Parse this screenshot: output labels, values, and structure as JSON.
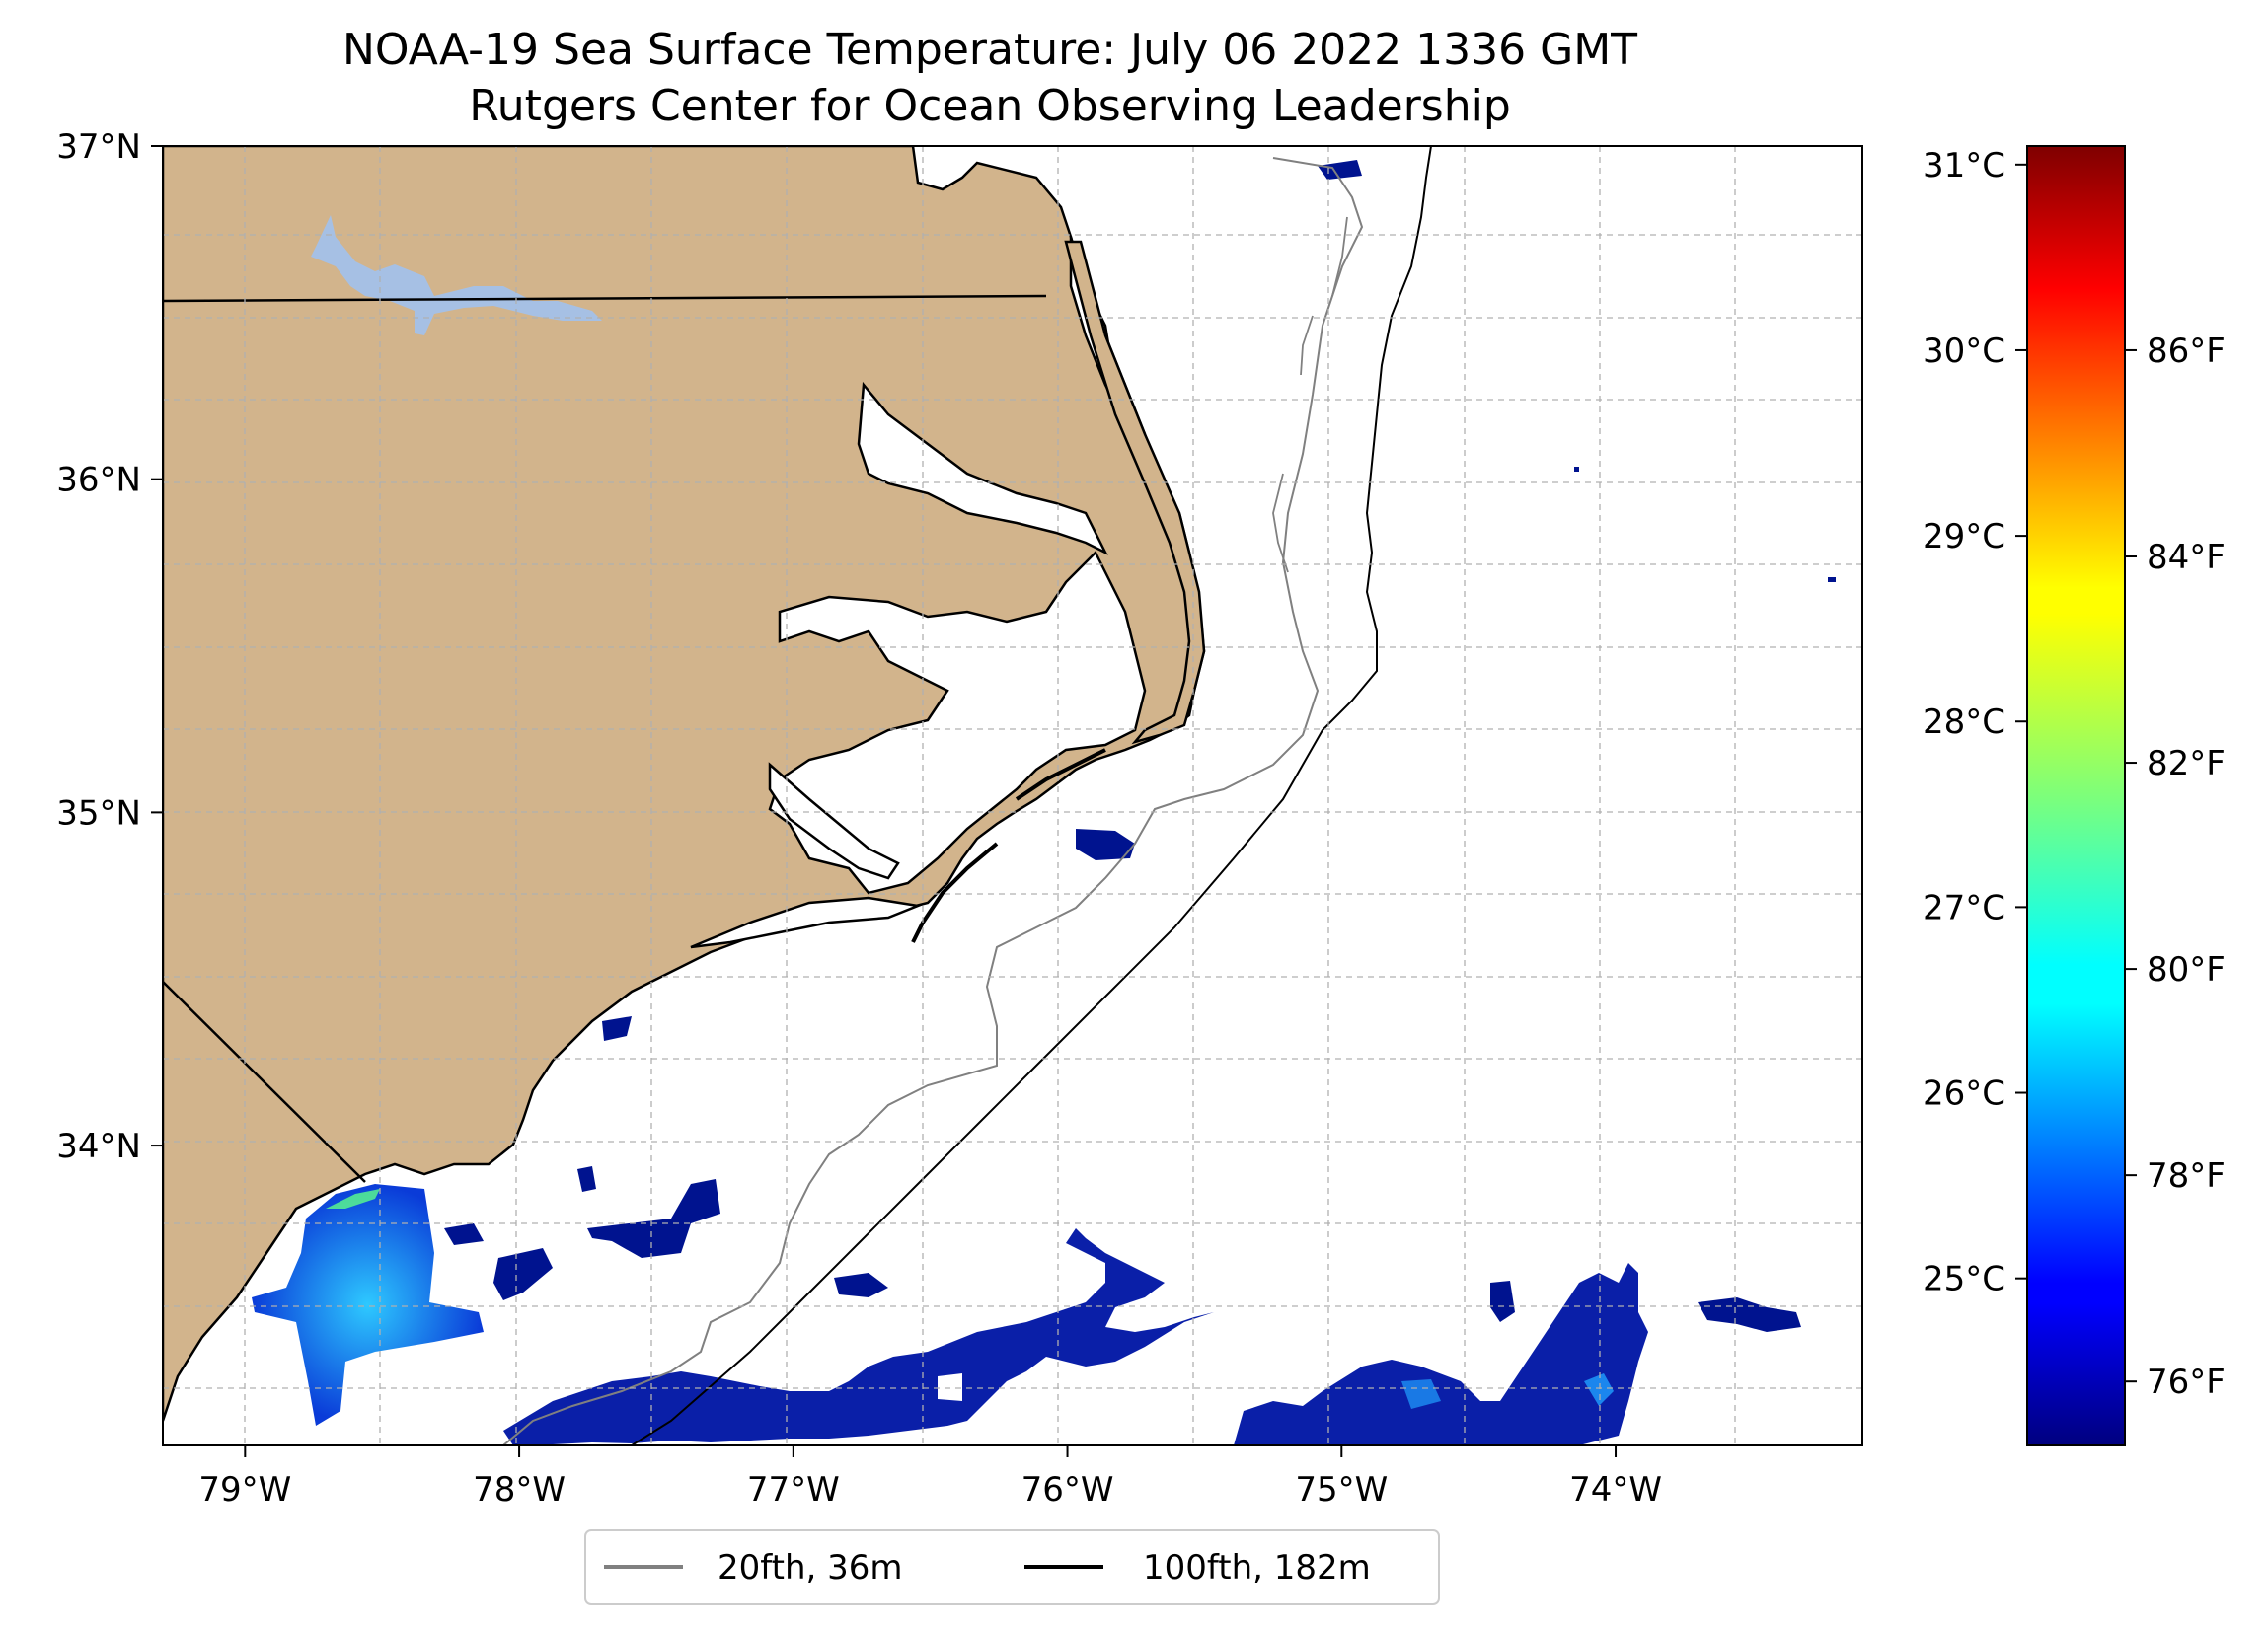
{
  "title": {
    "line1": "NOAA-19 Sea Surface Temperature: July 06 2022 1336 GMT",
    "line2": "Rutgers Center for Ocean Observing Leadership"
  },
  "map": {
    "lon_range": [
      -79.3,
      -73.1
    ],
    "lat_range": [
      33.1,
      37.0
    ],
    "lon_ticks": [
      {
        "value": -79,
        "label": "79°W"
      },
      {
        "value": -78,
        "label": "78°W"
      },
      {
        "value": -77,
        "label": "77°W"
      },
      {
        "value": -76,
        "label": "76°W"
      },
      {
        "value": -75,
        "label": "75°W"
      },
      {
        "value": -74,
        "label": "74°W"
      }
    ],
    "lat_ticks": [
      {
        "value": 34,
        "label": "34°N"
      },
      {
        "value": 35,
        "label": "35°N"
      },
      {
        "value": 36,
        "label": "36°N"
      },
      {
        "value": 37,
        "label": "37°N"
      }
    ],
    "grid": true,
    "colors": {
      "land": "#d2b48c",
      "lake": "#a6c0e4",
      "coastline": "#000000",
      "isobath_20": "#808080",
      "isobath_100": "#000000"
    }
  },
  "legend": {
    "placement": "bottom-center",
    "items": [
      {
        "label": "20fth, 36m",
        "color": "#808080"
      },
      {
        "label": "100fth, 182m",
        "color": "#000000"
      }
    ]
  },
  "colorbar": {
    "colormap": "jet",
    "range_c": [
      24.1,
      31.1
    ],
    "celsius_ticks": [
      {
        "value": 25,
        "label": "25°C"
      },
      {
        "value": 26,
        "label": "26°C"
      },
      {
        "value": 27,
        "label": "27°C"
      },
      {
        "value": 28,
        "label": "28°C"
      },
      {
        "value": 29,
        "label": "29°C"
      },
      {
        "value": 30,
        "label": "30°C"
      },
      {
        "value": 31,
        "label": "31°C"
      }
    ],
    "fahrenheit_ticks": [
      {
        "value": 76,
        "label": "76°F"
      },
      {
        "value": 78,
        "label": "78°F"
      },
      {
        "value": 80,
        "label": "80°F"
      },
      {
        "value": 82,
        "label": "82°F"
      },
      {
        "value": 84,
        "label": "84°F"
      },
      {
        "value": 86,
        "label": "86°F"
      }
    ]
  }
}
